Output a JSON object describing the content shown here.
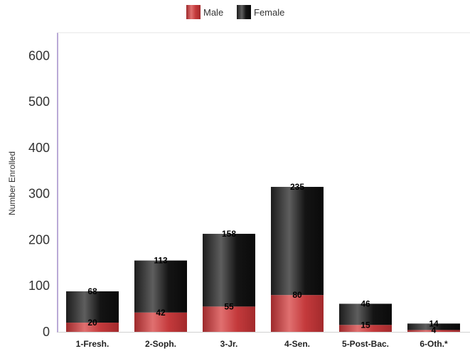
{
  "chart_data": {
    "type": "bar",
    "stacked": true,
    "categories": [
      "1-Fresh.",
      "2-Soph.",
      "3-Jr.",
      "4-Sen.",
      "5-Post-Bac.",
      "6-Oth.*"
    ],
    "series": [
      {
        "name": "Male",
        "values": [
          20,
          42,
          55,
          80,
          15,
          4
        ],
        "color": "#c0393b"
      },
      {
        "name": "Female",
        "values": [
          68,
          113,
          158,
          235,
          46,
          14
        ],
        "color": "#1a1a1a"
      }
    ],
    "yticks": [
      "0",
      "100",
      "200",
      "300",
      "400",
      "500",
      "600"
    ],
    "ylim": [
      0,
      650
    ],
    "ylabel": "Number Enrolled",
    "xlabel": "",
    "title": "",
    "legend_position": "top-center",
    "grid": false
  }
}
